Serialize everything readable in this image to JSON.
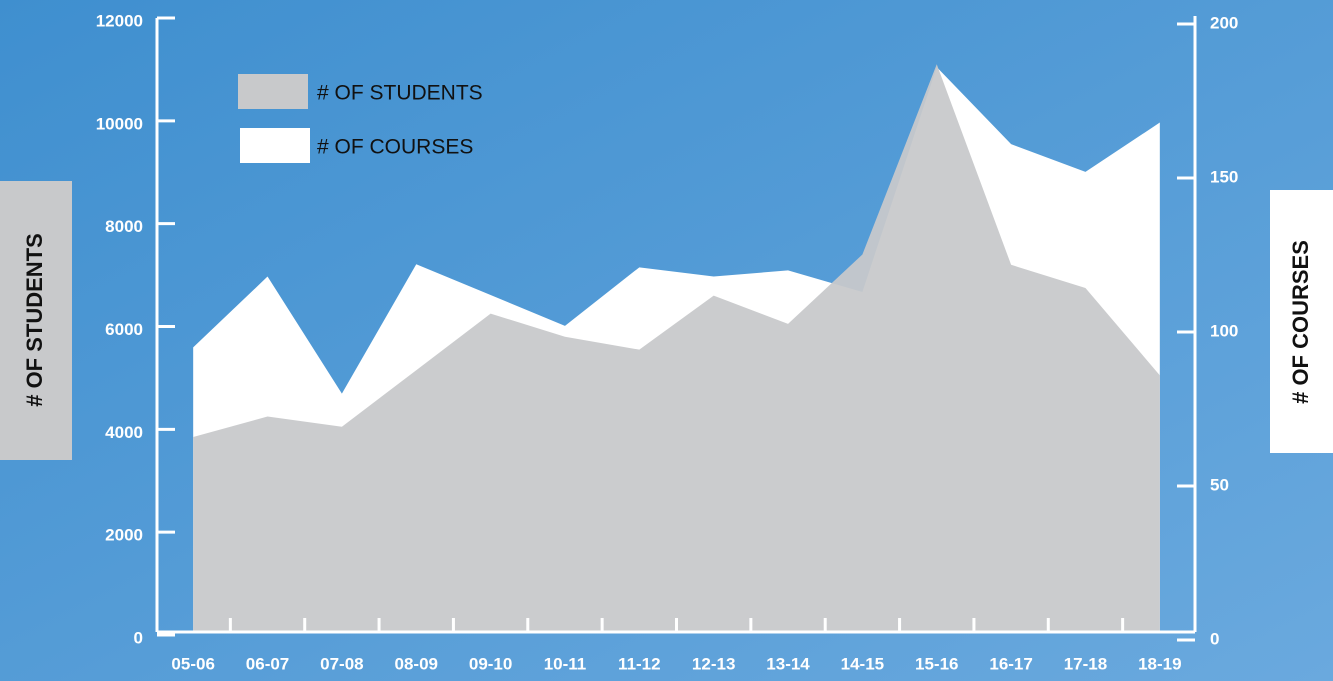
{
  "chart_data": {
    "type": "area",
    "categories": [
      "05-06",
      "06-07",
      "07-08",
      "08-09",
      "09-10",
      "10-11",
      "11-12",
      "12-13",
      "13-14",
      "14-15",
      "15-16",
      "16-17",
      "17-18",
      "18-19"
    ],
    "series": [
      {
        "name": "# OF COURSES",
        "color": "#ffffff",
        "axis": "y2",
        "values": [
          95,
          118,
          80,
          122,
          112,
          102,
          121,
          118,
          120,
          113,
          186,
          161,
          152,
          168
        ]
      },
      {
        "name": "# OF STUDENTS",
        "color": "#c8c9cb",
        "axis": "y",
        "values": [
          3850,
          4250,
          4050,
          5150,
          6250,
          5800,
          5550,
          6600,
          6050,
          7400,
          11100,
          7200,
          6750,
          5050
        ]
      }
    ],
    "y_label": "# OF STUDENTS",
    "y2_label": "# OF COURSES",
    "ylim": [
      0,
      12000
    ],
    "yticks": [
      0,
      2000,
      4000,
      6000,
      8000,
      10000,
      12000
    ],
    "y2lim": [
      0,
      200
    ],
    "y2ticks": [
      0,
      50,
      100,
      150,
      200
    ]
  }
}
